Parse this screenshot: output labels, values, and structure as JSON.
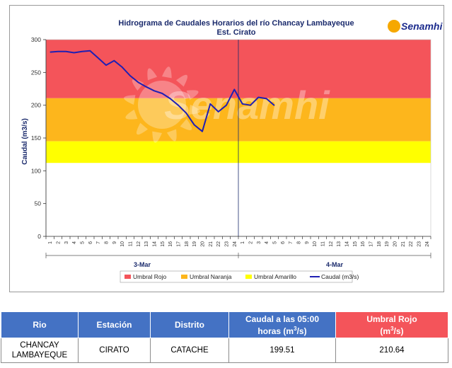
{
  "chart_data": {
    "type": "line",
    "title": "Hidrograma de Caudales Horarios del río Chancay Lambayeque",
    "subtitle": "Est. Cirato",
    "ylabel": "Caudal  (m3/s)",
    "xlabel": "",
    "ylim": [
      0,
      300
    ],
    "yticks": [
      0,
      50,
      100,
      150,
      200,
      250,
      300
    ],
    "hour_ticks": [
      "1",
      "2",
      "3",
      "4",
      "5",
      "6",
      "7",
      "8",
      "9",
      "10",
      "11",
      "12",
      "13",
      "14",
      "15",
      "16",
      "17",
      "18",
      "19",
      "20",
      "21",
      "22",
      "23",
      "24"
    ],
    "day_labels": [
      "3-Mar",
      "4-Mar"
    ],
    "bands": [
      {
        "name": "Umbral Rojo",
        "from": 210.64,
        "to": 300,
        "color": "#f4545a"
      },
      {
        "name": "Umbral Naranja",
        "from": 145,
        "to": 210.64,
        "color": "#fdb61c"
      },
      {
        "name": "Umbral Amarillo",
        "from": 112,
        "to": 145,
        "color": "#ffff00"
      }
    ],
    "series": [
      {
        "name": "Caudal (m3/s)",
        "color": "#1f1fb4",
        "x": [
          1,
          2,
          3,
          4,
          5,
          6,
          7,
          8,
          9,
          10,
          11,
          12,
          13,
          14,
          15,
          16,
          17,
          18,
          19,
          20,
          21,
          22,
          23,
          24,
          25,
          26,
          27,
          28,
          29
        ],
        "values": [
          281,
          282,
          282,
          280,
          282,
          283,
          272,
          261,
          268,
          258,
          245,
          235,
          228,
          222,
          218,
          210,
          200,
          188,
          170,
          160,
          202,
          190,
          200,
          224,
          202,
          200,
          212,
          210,
          199.51
        ]
      }
    ],
    "legend": [
      "Umbral Rojo",
      "Umbral Naranja",
      "Umbral Amarillo",
      "Caudal (m3/s)"
    ],
    "legend_position": "bottom",
    "grid": false
  },
  "logo": {
    "text": "Senamhi",
    "watermark": "Senamhi"
  },
  "table": {
    "headers": {
      "rio": "Rio",
      "estacion": "Estación",
      "distrito": "Distrito",
      "caudal_line1": "Caudal a las 05:00",
      "caudal_line2": "horas (m",
      "caudal_sup": "3",
      "caudal_end": "/s)",
      "umbral_line1": "Umbral Rojo",
      "umbral_line2": "(m",
      "umbral_sup": "3",
      "umbral_end": "/s)"
    },
    "row": {
      "rio_line1": "CHANCAY",
      "rio_line2": "LAMBAYEQUE",
      "estacion": "CIRATO",
      "distrito": "CATACHE",
      "caudal": "199.51",
      "umbral": "210.64"
    }
  }
}
